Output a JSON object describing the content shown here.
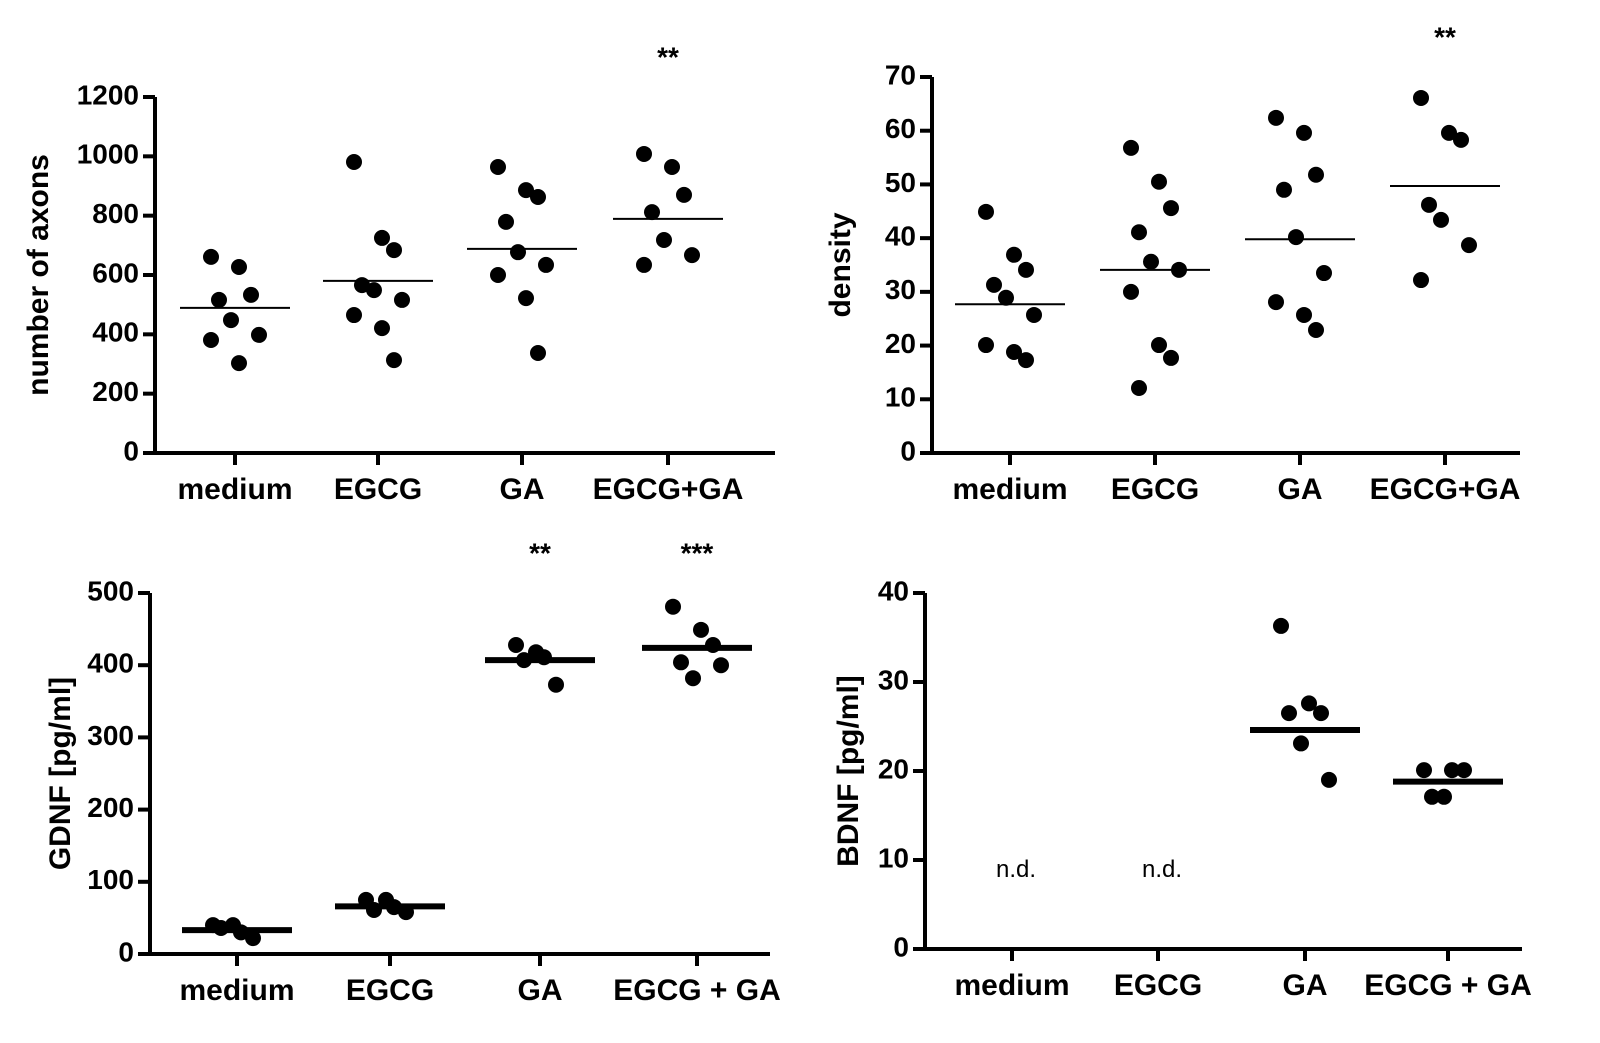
{
  "chart_data": [
    {
      "type": "dot",
      "y_label": "number of axons",
      "categories": [
        "medium",
        "EGCG",
        "GA",
        "EGCG+GA"
      ],
      "points": [
        [
          661,
          627,
          533,
          516,
          448,
          398,
          381,
          303
        ],
        [
          981,
          725,
          684,
          566,
          549,
          516,
          465,
          421,
          313
        ],
        [
          964,
          886,
          863,
          779,
          677,
          634,
          600,
          522,
          337
        ],
        [
          1008,
          964,
          870,
          812,
          718,
          667,
          634
        ]
      ],
      "means": [
        489,
        580,
        688,
        789
      ],
      "significance": [
        null,
        null,
        null,
        "**"
      ],
      "color": "#000000",
      "ylim": [
        0,
        1200
      ],
      "yticks": [
        0,
        200,
        400,
        600,
        800,
        1000,
        1200
      ]
    },
    {
      "type": "dot",
      "y_label": "density",
      "categories": [
        "medium",
        "EGCG",
        "GA",
        "EGCG+GA"
      ],
      "points": [
        [
          44.9,
          36.9,
          34.1,
          31.3,
          28.9,
          25.7,
          20.1,
          18.8,
          17.3
        ],
        [
          56.8,
          50.5,
          45.6,
          41.1,
          35.6,
          34.1,
          30,
          20.1,
          17.7,
          12.1
        ],
        [
          62.4,
          59.6,
          51.8,
          49,
          40.2,
          33.5,
          28.1,
          25.7,
          22.9
        ],
        [
          66.1,
          59.6,
          58.3,
          46.2,
          43.4,
          38.7,
          32.2
        ]
      ],
      "means": [
        27.7,
        34.1,
        39.8,
        49.7
      ],
      "significance": [
        null,
        null,
        null,
        "**"
      ],
      "color": "#000000",
      "ylim": [
        0,
        70
      ],
      "yticks": [
        0,
        10,
        20,
        30,
        40,
        50,
        60,
        70
      ]
    },
    {
      "type": "dot",
      "y_label": "GDNF [pg/ml]",
      "categories": [
        "medium",
        "EGCG",
        "GA",
        "EGCG + GA"
      ],
      "points": [
        [
          40,
          30,
          22,
          36,
          40
        ],
        [
          75,
          65,
          58,
          61,
          75
        ],
        [
          428,
          411,
          373,
          407,
          418
        ],
        [
          481,
          449,
          428,
          404,
          382,
          400
        ]
      ],
      "means": [
        33,
        66,
        407,
        424
      ],
      "significance": [
        null,
        null,
        "**",
        "***"
      ],
      "color": "#000000",
      "ylim": [
        0,
        500
      ],
      "yticks": [
        0,
        100,
        200,
        300,
        400,
        500
      ]
    },
    {
      "type": "dot",
      "y_label": "BDNF [pg/ml]",
      "categories": [
        "medium",
        "EGCG",
        "GA",
        "EGCG + GA"
      ],
      "points": [
        [],
        [],
        [
          36.3,
          27.6,
          26.5,
          26.5,
          23.1,
          19.0
        ],
        [
          20.1,
          20.1,
          20.1,
          17.1,
          17.1
        ]
      ],
      "means": [
        null,
        null,
        24.6,
        18.8
      ],
      "notes": [
        "n.d.",
        "n.d.",
        null,
        null
      ],
      "color": "#000000",
      "ylim": [
        0,
        40
      ],
      "yticks": [
        0,
        10,
        20,
        30,
        40
      ]
    }
  ]
}
